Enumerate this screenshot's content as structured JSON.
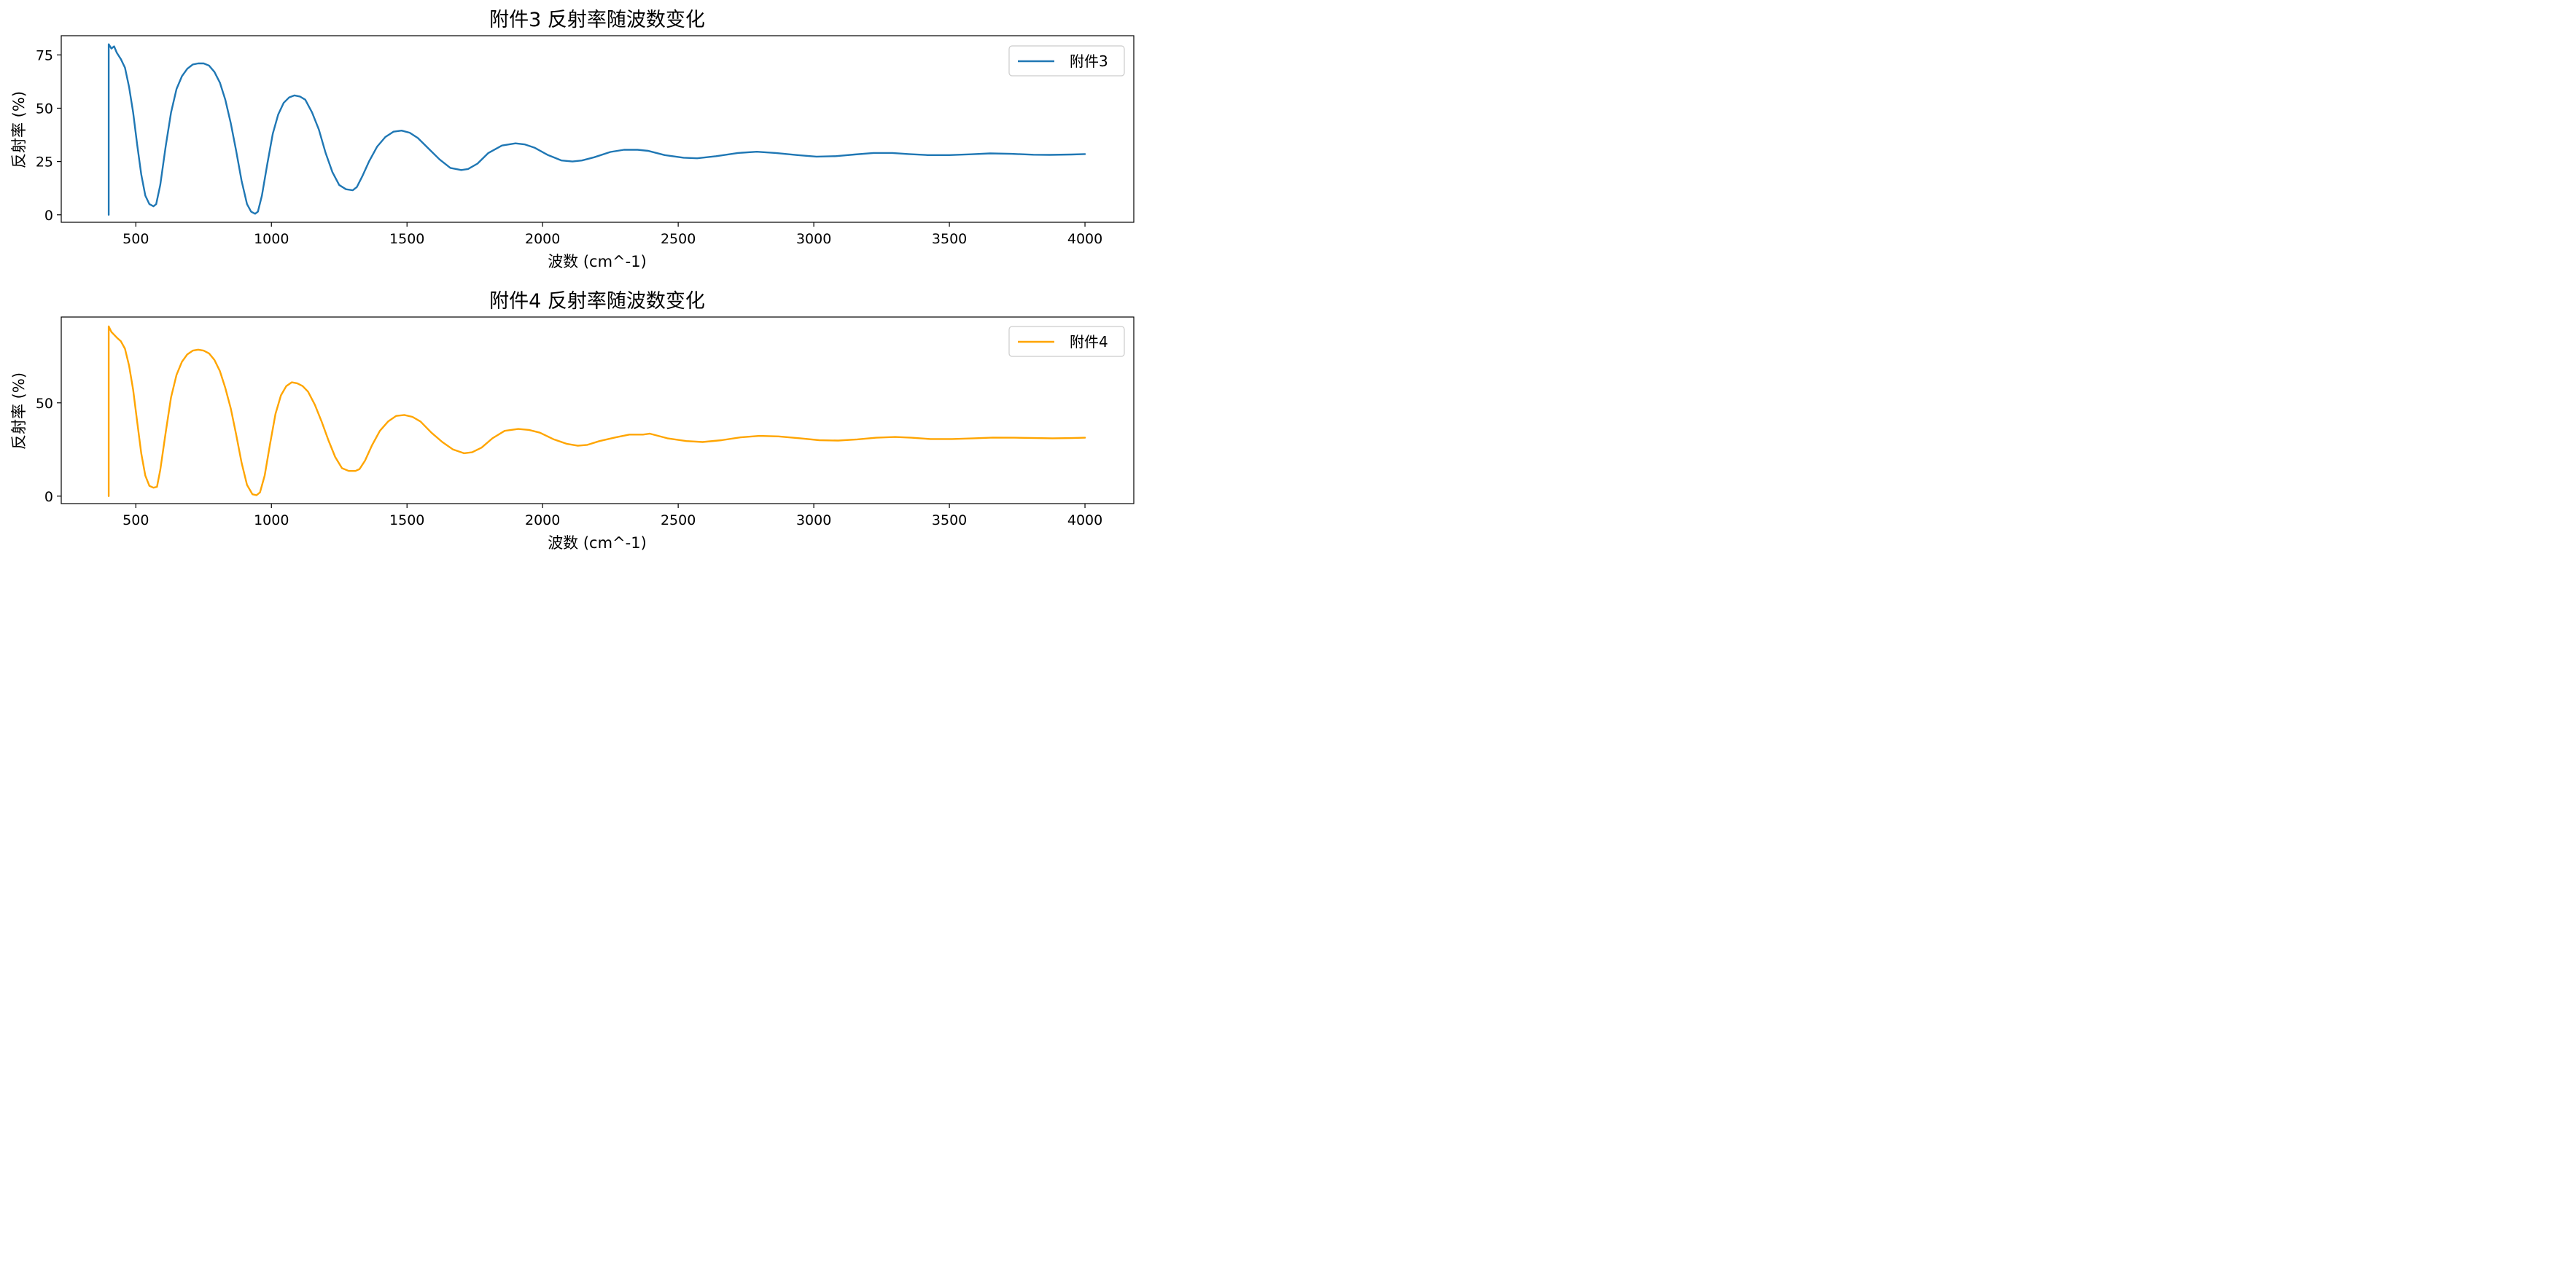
{
  "chart_data": [
    {
      "type": "line",
      "title": "附件3 反射率随波数变化",
      "xlabel": "波数 (cm^-1)",
      "ylabel": "反射率 (%)",
      "xlim": [
        225,
        4180
      ],
      "ylim": [
        -3.5,
        84
      ],
      "xticks": [
        500,
        1000,
        1500,
        2000,
        2500,
        3000,
        3500,
        4000
      ],
      "xtick_labels": [
        "500",
        "1000",
        "1500",
        "2000",
        "2500",
        "3000",
        "3500",
        "4000"
      ],
      "yticks": [
        0,
        25,
        50,
        75
      ],
      "ytick_labels": [
        "0",
        "25",
        "50",
        "75"
      ],
      "grid": false,
      "legend_position": "top-right",
      "series": [
        {
          "name": "附件3",
          "color": "#1f77b4",
          "x": [
            400,
            400,
            410,
            420,
            430,
            445,
            460,
            475,
            490,
            505,
            520,
            535,
            550,
            565,
            575,
            590,
            610,
            630,
            650,
            670,
            690,
            710,
            730,
            750,
            770,
            790,
            810,
            830,
            850,
            870,
            890,
            910,
            925,
            940,
            950,
            965,
            985,
            1005,
            1025,
            1045,
            1065,
            1085,
            1105,
            1125,
            1150,
            1175,
            1200,
            1225,
            1250,
            1275,
            1300,
            1315,
            1335,
            1360,
            1390,
            1420,
            1450,
            1480,
            1510,
            1540,
            1580,
            1620,
            1660,
            1700,
            1725,
            1760,
            1800,
            1850,
            1900,
            1935,
            1970,
            2020,
            2070,
            2110,
            2145,
            2190,
            2250,
            2300,
            2350,
            2390,
            2450,
            2520,
            2570,
            2640,
            2720,
            2790,
            2860,
            2940,
            3010,
            3080,
            3150,
            3220,
            3290,
            3350,
            3420,
            3500,
            3580,
            3650,
            3730,
            3810,
            3870,
            3950,
            4000
          ],
          "y": [
            0,
            80,
            78,
            79,
            76,
            73,
            69,
            60,
            48,
            33,
            19,
            9,
            5,
            4,
            5,
            14,
            32,
            48,
            59,
            65,
            68.5,
            70.5,
            71,
            71,
            70,
            67,
            62,
            54,
            43,
            30,
            16,
            5,
            1.5,
            0.5,
            1.5,
            9,
            24,
            38,
            47,
            52.5,
            55,
            56,
            55.5,
            54,
            48,
            40,
            29,
            20,
            14,
            12,
            11.5,
            13,
            18,
            25,
            32,
            36.5,
            39,
            39.5,
            38.5,
            36,
            31,
            26,
            22,
            21,
            21.5,
            24,
            29,
            32.5,
            33.5,
            33,
            31.5,
            28,
            25.5,
            25,
            25.5,
            27,
            29.5,
            30.5,
            30.5,
            30,
            28,
            26.8,
            26.5,
            27.5,
            29,
            29.6,
            29,
            28,
            27.3,
            27.5,
            28.3,
            29,
            29,
            28.5,
            28,
            28,
            28.4,
            28.8,
            28.6,
            28.2,
            28.1,
            28.3,
            28.5
          ]
        }
      ]
    },
    {
      "type": "line",
      "title": "附件4 反射率随波数变化",
      "xlabel": "波数 (cm^-1)",
      "ylabel": "反射率 (%)",
      "xlim": [
        225,
        4180
      ],
      "ylim": [
        -4,
        96
      ],
      "xticks": [
        500,
        1000,
        1500,
        2000,
        2500,
        3000,
        3500,
        4000
      ],
      "xtick_labels": [
        "500",
        "1000",
        "1500",
        "2000",
        "2500",
        "3000",
        "3500",
        "4000"
      ],
      "yticks": [
        0,
        50
      ],
      "ytick_labels": [
        "0",
        "50"
      ],
      "grid": false,
      "legend_position": "top-right",
      "series": [
        {
          "name": "附件4",
          "color": "#ffa500",
          "x": [
            400,
            400,
            410,
            420,
            430,
            445,
            460,
            475,
            490,
            505,
            520,
            535,
            550,
            565,
            578,
            590,
            610,
            630,
            650,
            670,
            690,
            710,
            730,
            750,
            770,
            790,
            810,
            830,
            850,
            870,
            890,
            910,
            930,
            945,
            958,
            975,
            995,
            1015,
            1035,
            1055,
            1075,
            1095,
            1115,
            1135,
            1160,
            1185,
            1210,
            1235,
            1260,
            1285,
            1310,
            1325,
            1345,
            1370,
            1400,
            1430,
            1460,
            1490,
            1520,
            1550,
            1590,
            1630,
            1670,
            1710,
            1740,
            1775,
            1815,
            1860,
            1910,
            1950,
            1990,
            2040,
            2090,
            2130,
            2165,
            2210,
            2270,
            2320,
            2370,
            2395,
            2460,
            2530,
            2590,
            2660,
            2730,
            2800,
            2870,
            2950,
            3020,
            3090,
            3160,
            3230,
            3300,
            3360,
            3430,
            3510,
            3590,
            3660,
            3740,
            3820,
            3880,
            3950,
            4000
          ],
          "y": [
            0,
            91,
            88,
            86.5,
            85,
            83,
            79,
            70,
            57,
            40,
            23,
            11,
            5.5,
            4.5,
            5,
            14,
            34,
            53,
            65,
            72,
            76,
            78,
            78.5,
            78,
            76.5,
            73,
            67,
            58,
            47,
            33,
            18,
            6,
            1,
            0.5,
            2,
            11,
            28,
            44,
            54,
            59,
            61,
            60.5,
            59,
            56,
            49,
            40,
            30,
            21,
            15,
            13.5,
            13.5,
            14.5,
            19,
            27,
            35,
            40,
            43,
            43.5,
            42.5,
            40,
            34,
            29,
            25,
            23,
            23.5,
            26,
            31,
            35,
            36,
            35.5,
            34,
            30.5,
            28,
            27,
            27.5,
            29.5,
            31.5,
            33,
            33,
            33.5,
            31,
            29.5,
            29,
            30,
            31.5,
            32.3,
            32,
            31,
            30,
            29.8,
            30.4,
            31.3,
            31.7,
            31.3,
            30.6,
            30.6,
            31,
            31.4,
            31.3,
            31.1,
            31,
            31.1,
            31.3
          ]
        }
      ]
    }
  ]
}
